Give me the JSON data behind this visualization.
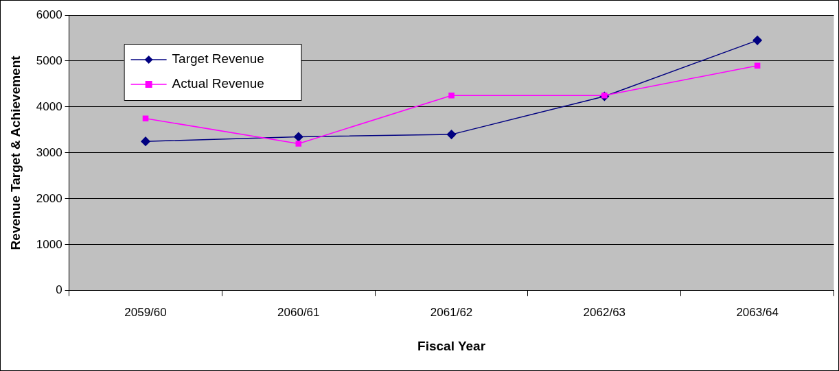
{
  "chart_data": {
    "type": "line",
    "xlabel": "Fiscal Year",
    "ylabel": "Revenue Target & Achievement",
    "categories": [
      "2059/60",
      "2060/61",
      "2061/62",
      "2062/63",
      "2063/64"
    ],
    "series": [
      {
        "name": "Target Revenue",
        "color": "#000080",
        "marker": "diamond",
        "values": [
          3250,
          3350,
          3400,
          4230,
          5450
        ]
      },
      {
        "name": "Actual Revenue",
        "color": "#ff00ff",
        "marker": "square",
        "values": [
          3750,
          3200,
          4250,
          4250,
          4900
        ]
      }
    ],
    "ylim": [
      0,
      6000
    ],
    "yticks": [
      0,
      1000,
      2000,
      3000,
      4000,
      5000,
      6000
    ],
    "grid": "y",
    "legend": "top left",
    "line_style": "solid"
  }
}
